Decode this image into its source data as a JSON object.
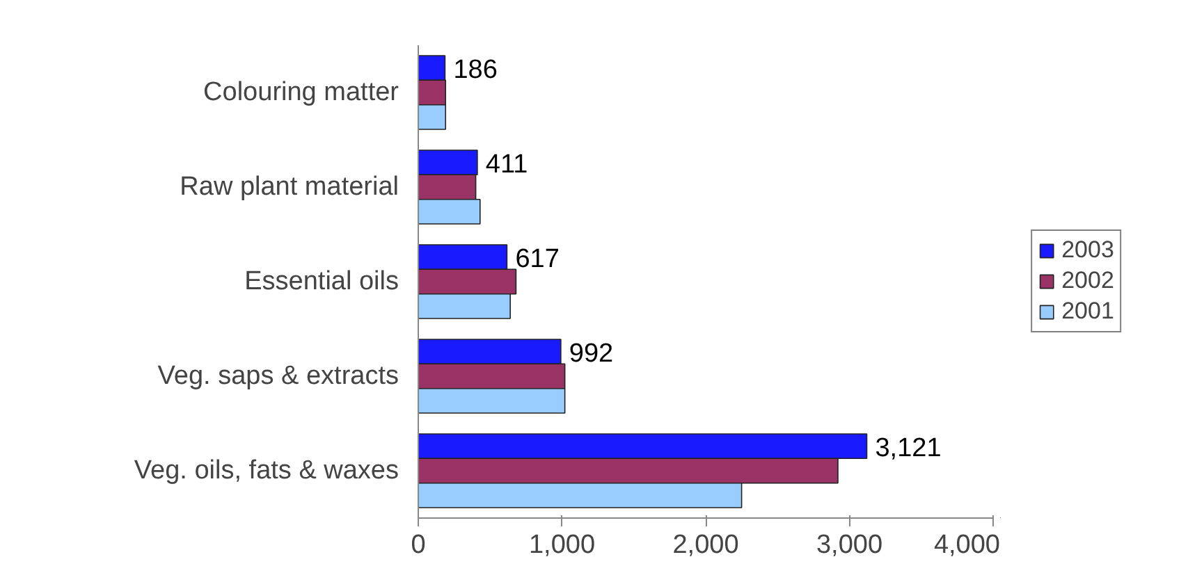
{
  "chart_data": {
    "type": "bar",
    "orientation": "horizontal",
    "categories": [
      "Colouring matter",
      "Raw plant material",
      "Essential oils",
      "Veg. saps & extracts",
      "Veg. oils, fats & waxes"
    ],
    "series": [
      {
        "name": "2003",
        "color": "#1a1aff",
        "values": [
          186,
          411,
          617,
          992,
          3121
        ],
        "value_labels": [
          "186",
          "411",
          "617",
          "992",
          "3,121"
        ]
      },
      {
        "name": "2002",
        "color": "#993366",
        "values": [
          190,
          400,
          680,
          1020,
          2920
        ]
      },
      {
        "name": "2001",
        "color": "#99ccff",
        "values": [
          190,
          430,
          640,
          1020,
          2250
        ]
      }
    ],
    "xlim": [
      0,
      4000
    ],
    "xticks": [
      0,
      {
        "value": 1000,
        "label": "1,000"
      },
      {
        "value": 2000,
        "label": "2,000"
      },
      {
        "value": 3000,
        "label": "3,000"
      },
      {
        "value": 4000,
        "label": "4,000"
      }
    ],
    "grid": false,
    "legend": "right"
  }
}
